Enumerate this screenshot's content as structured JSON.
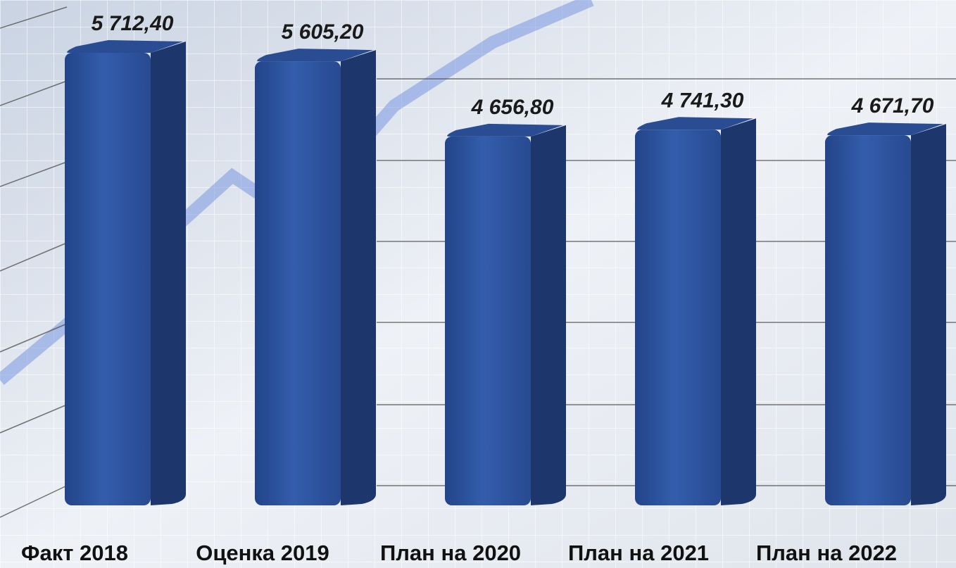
{
  "chart_data": {
    "type": "bar",
    "categories": [
      "Факт 2018",
      "Оценка 2019",
      "План на 2020",
      "План на 2021",
      "План на 2022"
    ],
    "values": [
      5712.4,
      5605.2,
      4656.8,
      4741.3,
      4671.7
    ],
    "value_labels": [
      "5 712,40",
      "5 605,20",
      "4 656,80",
      "4 741,30",
      "4 671,70"
    ],
    "color": "#2e54a0"
  }
}
